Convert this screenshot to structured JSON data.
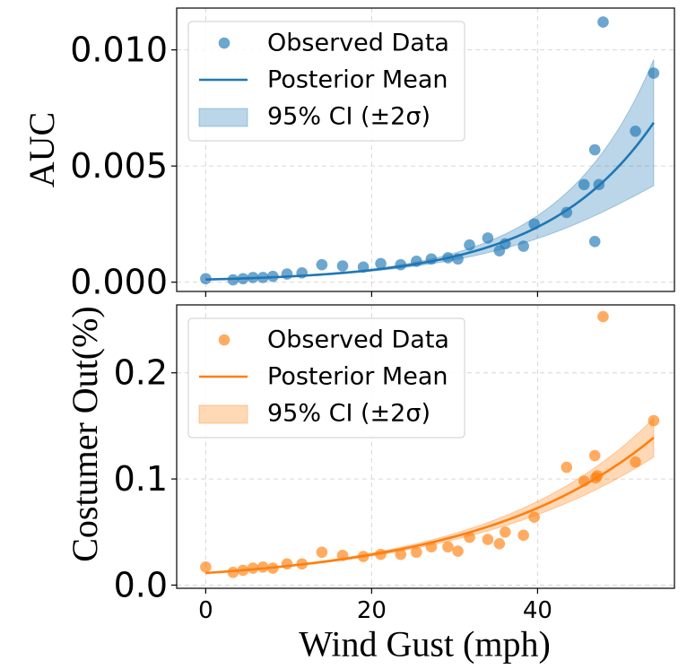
{
  "chart_data": [
    {
      "type": "scatter",
      "title": "",
      "xlabel": "",
      "ylabel": "AUC",
      "xlim": [
        -3.5,
        56.5
      ],
      "ylim": [
        -0.0004,
        0.0118
      ],
      "yticks": [
        0.0,
        0.005,
        0.01
      ],
      "ytick_labels": [
        "0.000",
        "0.005",
        "0.010"
      ],
      "xticks": [
        0,
        20,
        40
      ],
      "grid": true,
      "legend_position": "upper-left",
      "colors": {
        "scatter": "#1f77b4",
        "line": "#1f77b4",
        "band": "#1f77b4"
      },
      "series": [
        {
          "name": "Observed Data",
          "kind": "scatter",
          "points": [
            [
              0,
              0.00015
            ],
            [
              3.3,
              0.0001
            ],
            [
              4.5,
              0.00015
            ],
            [
              5.7,
              0.0002
            ],
            [
              6.9,
              0.0002
            ],
            [
              8.1,
              0.00025
            ],
            [
              9.8,
              0.00035
            ],
            [
              11.6,
              0.0004
            ],
            [
              14.0,
              0.00075
            ],
            [
              16.5,
              0.0007
            ],
            [
              19.0,
              0.00065
            ],
            [
              21.1,
              0.0008
            ],
            [
              23.5,
              0.00075
            ],
            [
              25.4,
              0.0009
            ],
            [
              27.2,
              0.001
            ],
            [
              29.2,
              0.00105
            ],
            [
              30.4,
              0.001
            ],
            [
              31.8,
              0.0016
            ],
            [
              34.0,
              0.0019
            ],
            [
              35.4,
              0.00135
            ],
            [
              36.1,
              0.00165
            ],
            [
              38.3,
              0.00155
            ],
            [
              39.6,
              0.0025
            ],
            [
              43.5,
              0.003
            ],
            [
              45.6,
              0.0042
            ],
            [
              46.9,
              0.0057
            ],
            [
              47.4,
              0.0042
            ],
            [
              46.9,
              0.00175
            ],
            [
              47.9,
              0.0112
            ],
            [
              51.8,
              0.0065
            ],
            [
              54.0,
              0.009
            ]
          ]
        },
        {
          "name": "Posterior Mean",
          "kind": "line",
          "x_start": 0,
          "x_end": 54,
          "curve": "y = 0.000114 * exp(0.0759 * x)"
        },
        {
          "name": "95% CI (±2σ)",
          "kind": "band",
          "curve": "mean × (1 ± 0.033·exp(0.046·x))"
        }
      ]
    },
    {
      "type": "scatter",
      "title": "",
      "xlabel": "Wind Gust (mph)",
      "ylabel": "Costumer Out(%)",
      "xlim": [
        -3.5,
        56.5
      ],
      "ylim": [
        -0.003,
        0.264
      ],
      "yticks": [
        0.0,
        0.1,
        0.2
      ],
      "ytick_labels": [
        "0.0",
        "0.1",
        "0.2"
      ],
      "xticks": [
        0,
        20,
        40
      ],
      "xtick_labels": [
        "0",
        "20",
        "40"
      ],
      "grid": true,
      "legend_position": "upper-left",
      "colors": {
        "scatter": "#ff7f0e",
        "line": "#ff7f0e",
        "band": "#ff7f0e"
      },
      "series": [
        {
          "name": "Observed Data",
          "kind": "scatter",
          "points": [
            [
              0,
              0.017
            ],
            [
              3.3,
              0.012
            ],
            [
              4.5,
              0.014
            ],
            [
              5.7,
              0.016
            ],
            [
              6.9,
              0.017
            ],
            [
              8.1,
              0.016
            ],
            [
              9.8,
              0.02
            ],
            [
              11.6,
              0.02
            ],
            [
              14.0,
              0.031
            ],
            [
              16.5,
              0.028
            ],
            [
              19.0,
              0.027
            ],
            [
              21.1,
              0.029
            ],
            [
              23.5,
              0.029
            ],
            [
              25.4,
              0.031
            ],
            [
              27.2,
              0.036
            ],
            [
              29.2,
              0.036
            ],
            [
              30.4,
              0.032
            ],
            [
              31.8,
              0.045
            ],
            [
              34.0,
              0.043
            ],
            [
              35.4,
              0.039
            ],
            [
              36.1,
              0.05
            ],
            [
              38.3,
              0.047
            ],
            [
              39.6,
              0.064
            ],
            [
              43.5,
              0.111
            ],
            [
              45.6,
              0.098
            ],
            [
              46.9,
              0.122
            ],
            [
              47.2,
              0.103
            ],
            [
              47.0,
              0.101
            ],
            [
              47.9,
              0.253
            ],
            [
              51.8,
              0.116
            ],
            [
              54.0,
              0.155
            ]
          ]
        },
        {
          "name": "Posterior Mean",
          "kind": "line",
          "x_start": 0,
          "x_end": 54,
          "curve": "y = 0.0114 * exp(0.0463 * x)"
        },
        {
          "name": "95% CI (±2σ)",
          "kind": "band",
          "curve": "mean × (1 ± 0.026·exp(0.03·x))"
        }
      ]
    }
  ]
}
